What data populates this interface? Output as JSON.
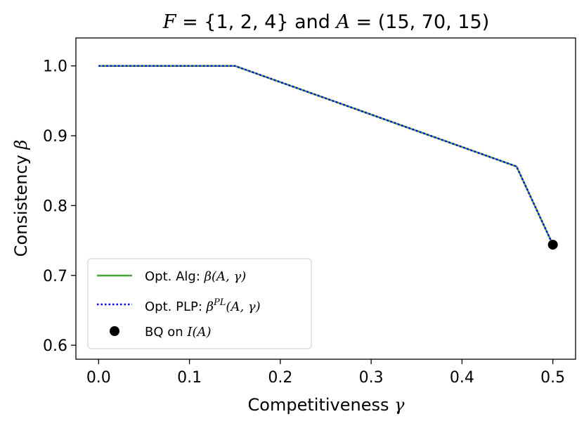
{
  "chart_data": {
    "type": "line",
    "title": {
      "prefix_var": "F",
      "eq1": " = {1, 2, 4}",
      "mid": " and ",
      "var2": "A",
      "eq2": " = (15, 70, 15)"
    },
    "xlabel": {
      "text": "Competitiveness ",
      "sym": "γ"
    },
    "ylabel": {
      "text": "Consistency ",
      "sym": "β"
    },
    "xlim": [
      -0.025,
      0.525
    ],
    "ylim": [
      0.58,
      1.04
    ],
    "xticks": [
      0.0,
      0.1,
      0.2,
      0.3,
      0.4,
      0.5
    ],
    "xtick_labels": [
      "0.0",
      "0.1",
      "0.2",
      "0.3",
      "0.4",
      "0.5"
    ],
    "yticks": [
      0.6,
      0.7,
      0.8,
      0.9,
      1.0
    ],
    "ytick_labels": [
      "0.6",
      "0.7",
      "0.8",
      "0.9",
      "1.0"
    ],
    "grid": false,
    "legend_position": "lower-left",
    "series": [
      {
        "name": "Opt. Alg: β(A, γ)",
        "legend_main": "Opt. Alg: ",
        "legend_math": "β(A, γ)",
        "style": "solid",
        "color": "#4c9f3f",
        "x": [
          0.0,
          0.15,
          0.46,
          0.5
        ],
        "y": [
          1.0,
          1.0,
          0.856,
          0.744
        ]
      },
      {
        "name": "Opt. PLP: β^PL(A, γ)",
        "legend_main": "Opt. PLP: ",
        "legend_math_base": "β",
        "legend_math_sup": "PL",
        "legend_math_rest": "(A, γ)",
        "style": "dotted",
        "color": "#0000ff",
        "x": [
          0.0,
          0.15,
          0.46,
          0.5
        ],
        "y": [
          1.0,
          1.0,
          0.856,
          0.744
        ]
      },
      {
        "name": "BQ on I(A)",
        "legend_main": "BQ on ",
        "legend_math": "I(A)",
        "style": "marker",
        "color": "#000000",
        "x": [
          0.5
        ],
        "y": [
          0.744
        ]
      }
    ]
  }
}
